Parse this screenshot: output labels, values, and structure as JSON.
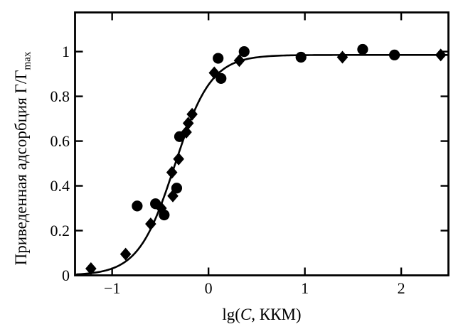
{
  "colors": {
    "background": "#ffffff",
    "ink": "#000000"
  },
  "chart_data": {
    "type": "scatter",
    "title": "",
    "xlabel_parts": {
      "prefix": "lg(",
      "arg_italic": "C",
      "suffix": ", ККМ)"
    },
    "ylabel_parts": {
      "main": "Приведенная адсорбция Γ/Γ",
      "sub": "max"
    },
    "xlim": [
      -1.385,
      2.49
    ],
    "ylim": [
      0,
      1.175
    ],
    "grid": false,
    "legend": null,
    "xticks": {
      "values": [
        -1,
        0,
        1,
        2
      ],
      "labels": [
        "−1",
        "0",
        "1",
        "2"
      ]
    },
    "yticks": {
      "values": [
        0,
        0.2,
        0.4,
        0.6,
        0.8,
        1.0
      ],
      "labels": [
        "0",
        "0.2",
        "0.4",
        "0.6",
        "0.8",
        "1"
      ]
    },
    "series": [
      {
        "name": "experiment-circles",
        "marker": "circle",
        "color": "#000000",
        "points": [
          [
            -0.74,
            0.31
          ],
          [
            -0.55,
            0.32
          ],
          [
            -0.46,
            0.27
          ],
          [
            -0.33,
            0.39
          ],
          [
            -0.3,
            0.62
          ],
          [
            0.13,
            0.88
          ],
          [
            0.1,
            0.97
          ],
          [
            0.37,
            1.0
          ],
          [
            0.96,
            0.975
          ],
          [
            1.6,
            1.01
          ],
          [
            1.93,
            0.985
          ]
        ]
      },
      {
        "name": "experiment-diamonds",
        "marker": "diamond",
        "color": "#000000",
        "points": [
          [
            -1.22,
            0.03
          ],
          [
            -0.86,
            0.095
          ],
          [
            -0.6,
            0.23
          ],
          [
            -0.49,
            0.3
          ],
          [
            -0.38,
            0.46
          ],
          [
            -0.37,
            0.355
          ],
          [
            -0.31,
            0.52
          ],
          [
            -0.23,
            0.64
          ],
          [
            -0.21,
            0.68
          ],
          [
            -0.17,
            0.72
          ],
          [
            0.06,
            0.905
          ],
          [
            0.32,
            0.96
          ],
          [
            1.39,
            0.975
          ],
          [
            2.41,
            0.985
          ]
        ]
      }
    ],
    "fit_curve": {
      "type": "logistic-sigmoid",
      "formula": "y = A / (1 + 10^(−n·(x − x0)))",
      "A": 0.985,
      "n": 2.3,
      "x0": -0.35,
      "x_start": -1.365,
      "x_end": 2.49
    }
  }
}
